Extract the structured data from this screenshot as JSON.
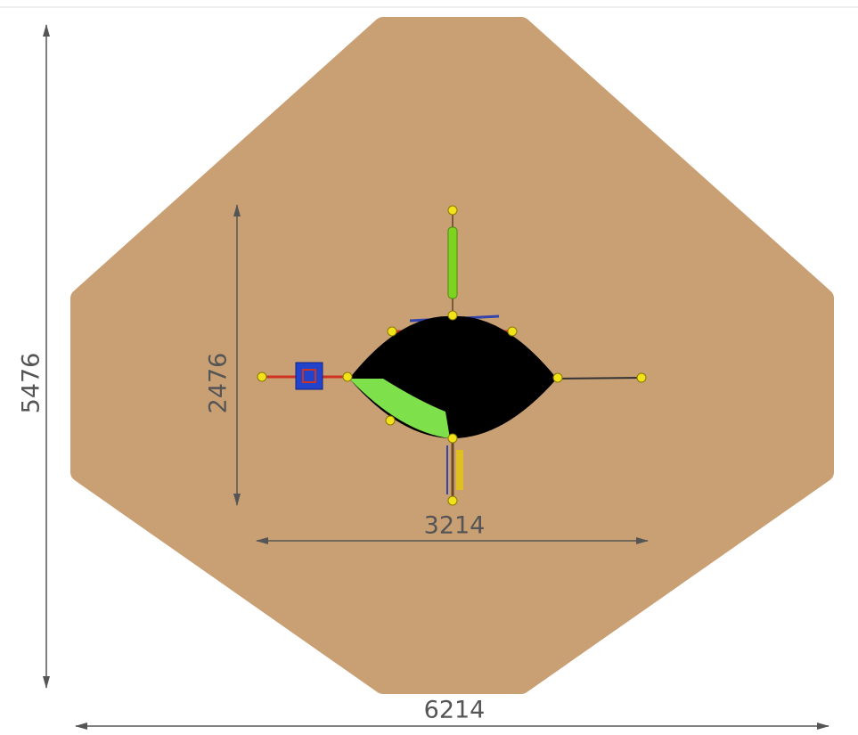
{
  "dimensions": {
    "overall_height": 5476,
    "overall_width": 6214,
    "inner_height": 2476,
    "inner_width": 3214
  }
}
